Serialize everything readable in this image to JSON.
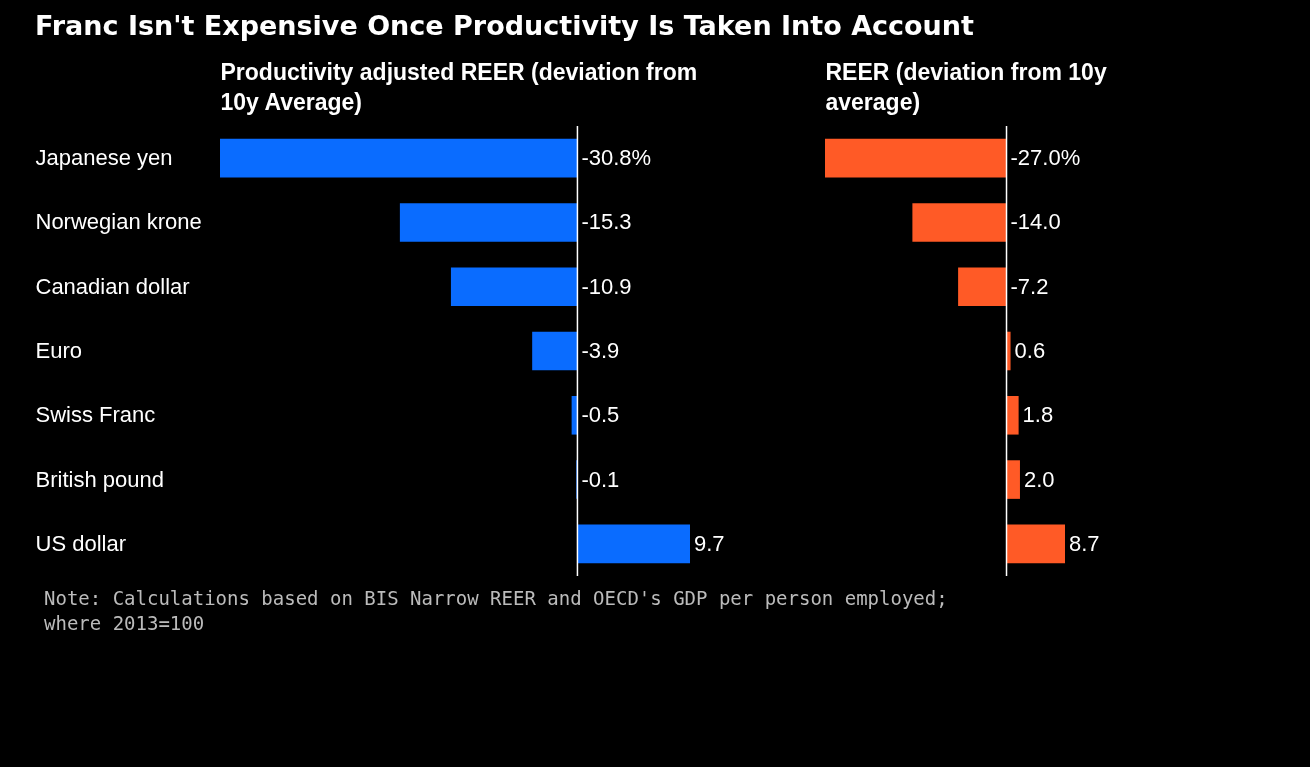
{
  "chart_data": [
    {
      "type": "bar",
      "orientation": "horizontal",
      "title": "Franc Isn't Expensive Once Productivity Is Taken Into Account",
      "xlabel": "Productivity adjusted REER (deviation from 10y Average)",
      "categories": [
        "Japanese yen",
        "Norwegian krone",
        "Canadian dollar",
        "Euro",
        "Swiss Franc",
        "British pound",
        "US dollar"
      ],
      "series": [
        {
          "color": "#0a6cff",
          "values": [
            -30.8,
            -15.3,
            -10.9,
            -3.9,
            -0.5,
            -0.1,
            9.7
          ],
          "value_labels": [
            "-30.8%",
            "-15.3",
            "-10.9",
            "-3.9",
            "-0.5",
            "-0.1",
            "9.7"
          ]
        }
      ],
      "ref_lines": [
        {
          "axis": "x",
          "value": 0,
          "color": "#ffffff"
        }
      ],
      "tick_labels": "y",
      "annotations": [
        "Note: Calculations based on BIS Narrow REER and OECD's GDP per person employed; where 2013=100"
      ]
    },
    {
      "type": "bar",
      "orientation": "horizontal",
      "xlabel": "REER (deviation from 10y average)",
      "categories": [
        null,
        null,
        null,
        null,
        null,
        null,
        null
      ],
      "series": [
        {
          "color": "#ff5a26",
          "values": [
            -27.0,
            -14.0,
            -7.2,
            0.6,
            1.8,
            2.0,
            8.7
          ],
          "value_labels": [
            "-27.0%",
            "-14.0",
            "-7.2",
            "0.6",
            "1.8",
            "2.0",
            "8.7"
          ]
        }
      ],
      "ref_lines": [
        {
          "axis": "x",
          "value": 0,
          "color": "#ffffff"
        }
      ],
      "tick_labels": false
    }
  ]
}
